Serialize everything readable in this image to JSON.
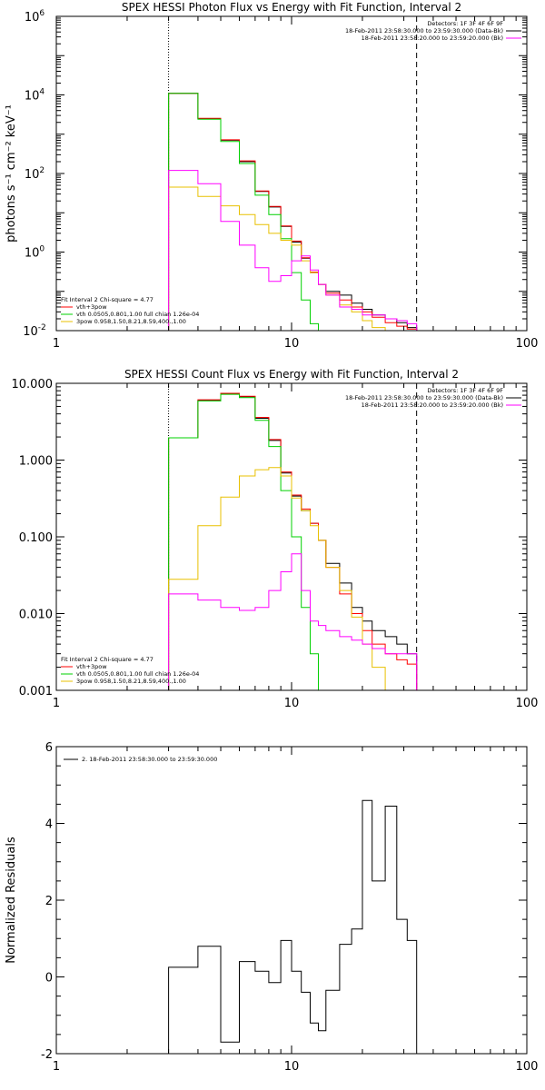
{
  "chart_data": [
    {
      "type": "line",
      "title": "SPEX HESSI Photon Flux vs Energy with Fit Function, Interval 2",
      "xlabel": "",
      "ylabel": "photons s⁻¹ cm⁻² keV⁻¹",
      "xlim": [
        1,
        100
      ],
      "ylim": [
        0.01,
        1000000
      ],
      "xscale": "log",
      "yscale": "log",
      "x_tick_labels": [
        "1",
        "10",
        "100"
      ],
      "y_tick_labels": [
        {
          "v": 0.01,
          "base": "10",
          "exp": "-2"
        },
        {
          "v": 1,
          "base": "10",
          "exp": "0"
        },
        {
          "v": 100,
          "base": "10",
          "exp": "2"
        },
        {
          "v": 10000,
          "base": "10",
          "exp": "4"
        },
        {
          "v": 1000000,
          "base": "10",
          "exp": "6"
        }
      ],
      "vlines": [
        {
          "x": 3,
          "style": "dotted"
        },
        {
          "x": 34,
          "style": "dashed"
        }
      ],
      "legend_top": [
        "Detectors: 1F 3F 4F 6F 9F",
        "18-Feb-2011 23:58:30.000 to 23:59:30.000 (Data-Bk)",
        "18-Feb-2011 23:58:20.000 to 23:59:20.000 (Bk)"
      ],
      "legend_bottom": {
        "header": "Fit Interval 2  Chi-square = 4.77",
        "items": [
          "vth+3pow",
          "vth 0.0505,0.801,1.00  full chian 1.26e-04",
          "3pow 0.958,1.50,8.21,8.59,400.,1.00"
        ]
      },
      "series": [
        {
          "color": "#000000",
          "x": [
            3,
            4,
            5,
            6,
            7,
            8,
            9,
            10,
            11,
            12,
            13,
            14,
            16,
            18,
            20,
            22,
            25,
            28,
            31,
            34
          ],
          "y": [
            11000,
            2500,
            700,
            200,
            35,
            14,
            4.5,
            1.8,
            0.7,
            0.3,
            0.15,
            0.1,
            0.08,
            0.05,
            0.035,
            0.025,
            0.02,
            0.016,
            0.012,
            0.01
          ]
        },
        {
          "color": "#ff0000",
          "x": [
            3,
            4,
            5,
            6,
            7,
            8,
            9,
            10,
            11,
            12,
            13,
            14,
            16,
            18,
            20,
            22,
            25,
            28,
            31,
            34
          ],
          "y": [
            11000,
            2550,
            720,
            210,
            36,
            14.5,
            4.6,
            1.9,
            0.72,
            0.31,
            0.15,
            0.09,
            0.06,
            0.04,
            0.03,
            0.022,
            0.016,
            0.013,
            0.011,
            0.01
          ]
        },
        {
          "color": "#00d000",
          "x": [
            3,
            4,
            5,
            6,
            7,
            8,
            9,
            10,
            11,
            12,
            13,
            14,
            16,
            18,
            20,
            22,
            25,
            28,
            31,
            34
          ],
          "y": [
            11000,
            2400,
            650,
            180,
            28,
            9,
            2.2,
            0.3,
            0.06,
            0.015,
            0.01,
            0.01,
            0.01,
            0.01,
            0.01,
            0.01,
            0.01,
            0.01,
            0.01,
            0.01
          ]
        },
        {
          "color": "#e8c000",
          "x": [
            3,
            4,
            5,
            6,
            7,
            8,
            9,
            10,
            11,
            12,
            13,
            14,
            16,
            18,
            20,
            22,
            25,
            28,
            31,
            34
          ],
          "y": [
            45,
            26,
            15,
            9,
            5,
            3,
            2,
            1.5,
            0.6,
            0.3,
            0.15,
            0.08,
            0.045,
            0.03,
            0.018,
            0.012,
            0.01,
            0.01,
            0.01,
            0.01
          ]
        },
        {
          "color": "#ff00ff",
          "x": [
            3,
            4,
            5,
            6,
            7,
            8,
            9,
            10,
            11,
            12,
            13,
            14,
            16,
            18,
            20,
            22,
            25,
            28,
            31,
            34
          ],
          "y": [
            120,
            55,
            6,
            1.5,
            0.4,
            0.18,
            0.25,
            0.6,
            0.8,
            0.35,
            0.15,
            0.08,
            0.04,
            0.035,
            0.025,
            0.025,
            0.02,
            0.018,
            0.015,
            0.012
          ]
        }
      ]
    },
    {
      "type": "line",
      "title": "SPEX HESSI Count Flux vs Energy with Fit Function, Interval 2",
      "xlabel": "",
      "ylabel": "",
      "xlim": [
        1,
        100
      ],
      "ylim": [
        0.001,
        10
      ],
      "xscale": "log",
      "yscale": "log",
      "x_tick_labels": [
        "1",
        "10",
        "100"
      ],
      "y_tick_labels": [
        {
          "v": 0.001,
          "text": "0.001"
        },
        {
          "v": 0.01,
          "text": "0.010"
        },
        {
          "v": 0.1,
          "text": "0.100"
        },
        {
          "v": 1,
          "text": "1.000"
        },
        {
          "v": 10,
          "text": "10.000"
        }
      ],
      "vlines": [
        {
          "x": 3,
          "style": "dotted"
        },
        {
          "x": 34,
          "style": "dashed"
        }
      ],
      "legend_top": [
        "Detectors: 1F 3F 4F 6F 9F",
        "18-Feb-2011 23:58:30.000 to 23:59:30.000 (Data-Bk)",
        "18-Feb-2011 23:58:20.000 to 23:59:20.000 (Bk)"
      ],
      "legend_bottom": {
        "header": "Fit Interval 2  Chi-square = 4.77",
        "items": [
          "vth+3pow",
          "vth 0.0505,0.801,1.00  full chian 1.26e-04",
          "3pow 0.958,1.50,8.21,8.59,400.,1.00"
        ]
      },
      "series": [
        {
          "color": "#000000",
          "x": [
            3,
            4,
            5,
            6,
            7,
            8,
            9,
            10,
            11,
            12,
            13,
            14,
            16,
            18,
            20,
            22,
            25,
            28,
            31,
            34
          ],
          "y": [
            1.95,
            6.0,
            7.3,
            6.7,
            3.5,
            1.8,
            0.68,
            0.34,
            0.22,
            0.15,
            0.09,
            0.045,
            0.025,
            0.012,
            0.008,
            0.006,
            0.005,
            0.004,
            0.003,
            0.001
          ]
        },
        {
          "color": "#ff0000",
          "x": [
            3,
            4,
            5,
            6,
            7,
            8,
            9,
            10,
            11,
            12,
            13,
            14,
            16,
            18,
            20,
            22,
            25,
            28,
            31,
            34
          ],
          "y": [
            1.95,
            6.1,
            7.4,
            6.8,
            3.6,
            1.85,
            0.7,
            0.35,
            0.23,
            0.15,
            0.09,
            0.04,
            0.018,
            0.01,
            0.006,
            0.004,
            0.003,
            0.0025,
            0.0022,
            0.001
          ]
        },
        {
          "color": "#00d000",
          "x": [
            3,
            4,
            5,
            6,
            7,
            8,
            9,
            10,
            11,
            12,
            13,
            14,
            16,
            18,
            20,
            22,
            25,
            28,
            31,
            34
          ],
          "y": [
            1.95,
            5.9,
            7.2,
            6.5,
            3.3,
            1.5,
            0.4,
            0.1,
            0.012,
            0.003,
            0.001,
            0.001,
            0.001,
            0.001,
            0.001,
            0.001,
            0.001,
            0.001,
            0.001,
            0.001
          ]
        },
        {
          "color": "#e8c000",
          "x": [
            3,
            4,
            5,
            6,
            7,
            8,
            9,
            10,
            11,
            12,
            13,
            14,
            16,
            18,
            20,
            22,
            25,
            28,
            31,
            34
          ],
          "y": [
            0.028,
            0.14,
            0.33,
            0.62,
            0.75,
            0.8,
            0.62,
            0.32,
            0.22,
            0.14,
            0.09,
            0.04,
            0.02,
            0.009,
            0.004,
            0.002,
            0.001,
            0.001,
            0.001,
            0.001
          ]
        },
        {
          "color": "#ff00ff",
          "x": [
            3,
            4,
            5,
            6,
            7,
            8,
            9,
            10,
            11,
            12,
            13,
            14,
            16,
            18,
            20,
            22,
            25,
            28,
            31,
            34
          ],
          "y": [
            0.018,
            0.015,
            0.012,
            0.011,
            0.012,
            0.02,
            0.035,
            0.06,
            0.02,
            0.008,
            0.007,
            0.006,
            0.005,
            0.0045,
            0.004,
            0.0035,
            0.003,
            0.003,
            0.003,
            0.002
          ]
        }
      ]
    },
    {
      "type": "line",
      "title": "",
      "xlabel": "",
      "ylabel": "Normalized Residuals",
      "xlim": [
        1,
        100
      ],
      "ylim": [
        -2,
        6
      ],
      "xscale": "log",
      "yscale": "linear",
      "x_tick_labels": [
        "1",
        "10",
        "100"
      ],
      "y_tick_labels": [
        {
          "v": -2,
          "text": "-2"
        },
        {
          "v": 0,
          "text": "0"
        },
        {
          "v": 2,
          "text": "2"
        },
        {
          "v": 4,
          "text": "4"
        },
        {
          "v": 6,
          "text": "6"
        }
      ],
      "legend_top_left": "2. 18-Feb-2011 23:58:30.000 to 23:59:30.000",
      "series": [
        {
          "color": "#000000",
          "edges": [
            3,
            4,
            5,
            6,
            7,
            8,
            9,
            10,
            11,
            12,
            13,
            14,
            16,
            18,
            20,
            22,
            25,
            28,
            31,
            34
          ],
          "values": [
            0.25,
            0.8,
            -1.7,
            0.4,
            0.15,
            -0.15,
            0.95,
            0.15,
            -0.4,
            -1.2,
            -1.4,
            -0.35,
            0.85,
            1.25,
            4.6,
            2.5,
            4.45,
            1.5,
            0.95
          ]
        }
      ]
    }
  ]
}
